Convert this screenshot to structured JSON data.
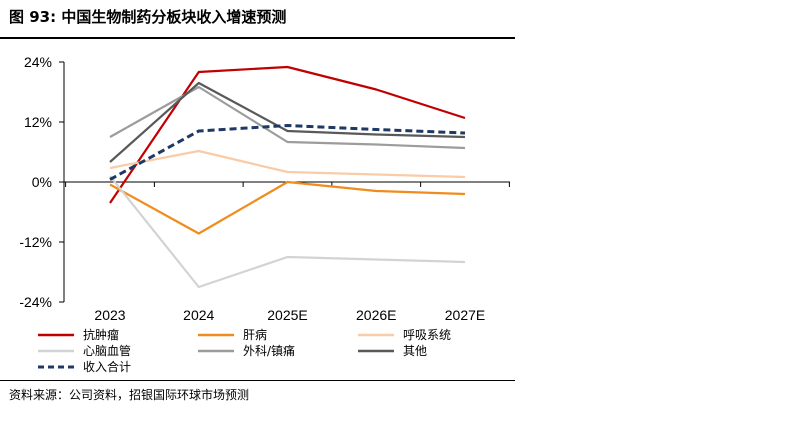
{
  "figure": {
    "title": "图 93: 中国生物制药分板块收入增速预测",
    "source": "资料来源：公司资料，招银国际环球市场预测"
  },
  "chart_data": {
    "type": "line",
    "categories": [
      "2023",
      "2024",
      "2025E",
      "2026E",
      "2027E"
    ],
    "yticks": [
      "24%",
      "12%",
      "0%",
      "-12%",
      "-24%"
    ],
    "ylim": [
      -24,
      24
    ],
    "unit": "%",
    "grid": false,
    "legend_position": "bottom",
    "series": [
      {
        "name": "抗肿瘤",
        "color": "#c00000",
        "dash": false,
        "values": [
          -4.2,
          22.0,
          23.0,
          18.5,
          12.8
        ]
      },
      {
        "name": "肝病",
        "color": "#f08c1e",
        "dash": false,
        "values": [
          -0.5,
          -10.3,
          0.0,
          -1.8,
          -2.4
        ]
      },
      {
        "name": "呼吸系统",
        "color": "#f8cba9",
        "dash": false,
        "values": [
          2.8,
          6.2,
          2.0,
          1.5,
          1.0
        ]
      },
      {
        "name": "心脑血管",
        "color": "#d3d3d3",
        "dash": false,
        "values": [
          1.2,
          -21.0,
          -15.0,
          -15.5,
          -16.0
        ]
      },
      {
        "name": "外科/镇痛",
        "color": "#9c9c9c",
        "dash": false,
        "values": [
          9.0,
          19.0,
          8.0,
          7.5,
          6.8
        ]
      },
      {
        "name": "其他",
        "color": "#595959",
        "dash": false,
        "values": [
          4.0,
          19.8,
          10.2,
          9.5,
          9.0
        ]
      },
      {
        "name": "收入合计",
        "color": "#203864",
        "dash": true,
        "values": [
          0.5,
          10.2,
          11.3,
          10.5,
          9.8
        ]
      }
    ]
  }
}
